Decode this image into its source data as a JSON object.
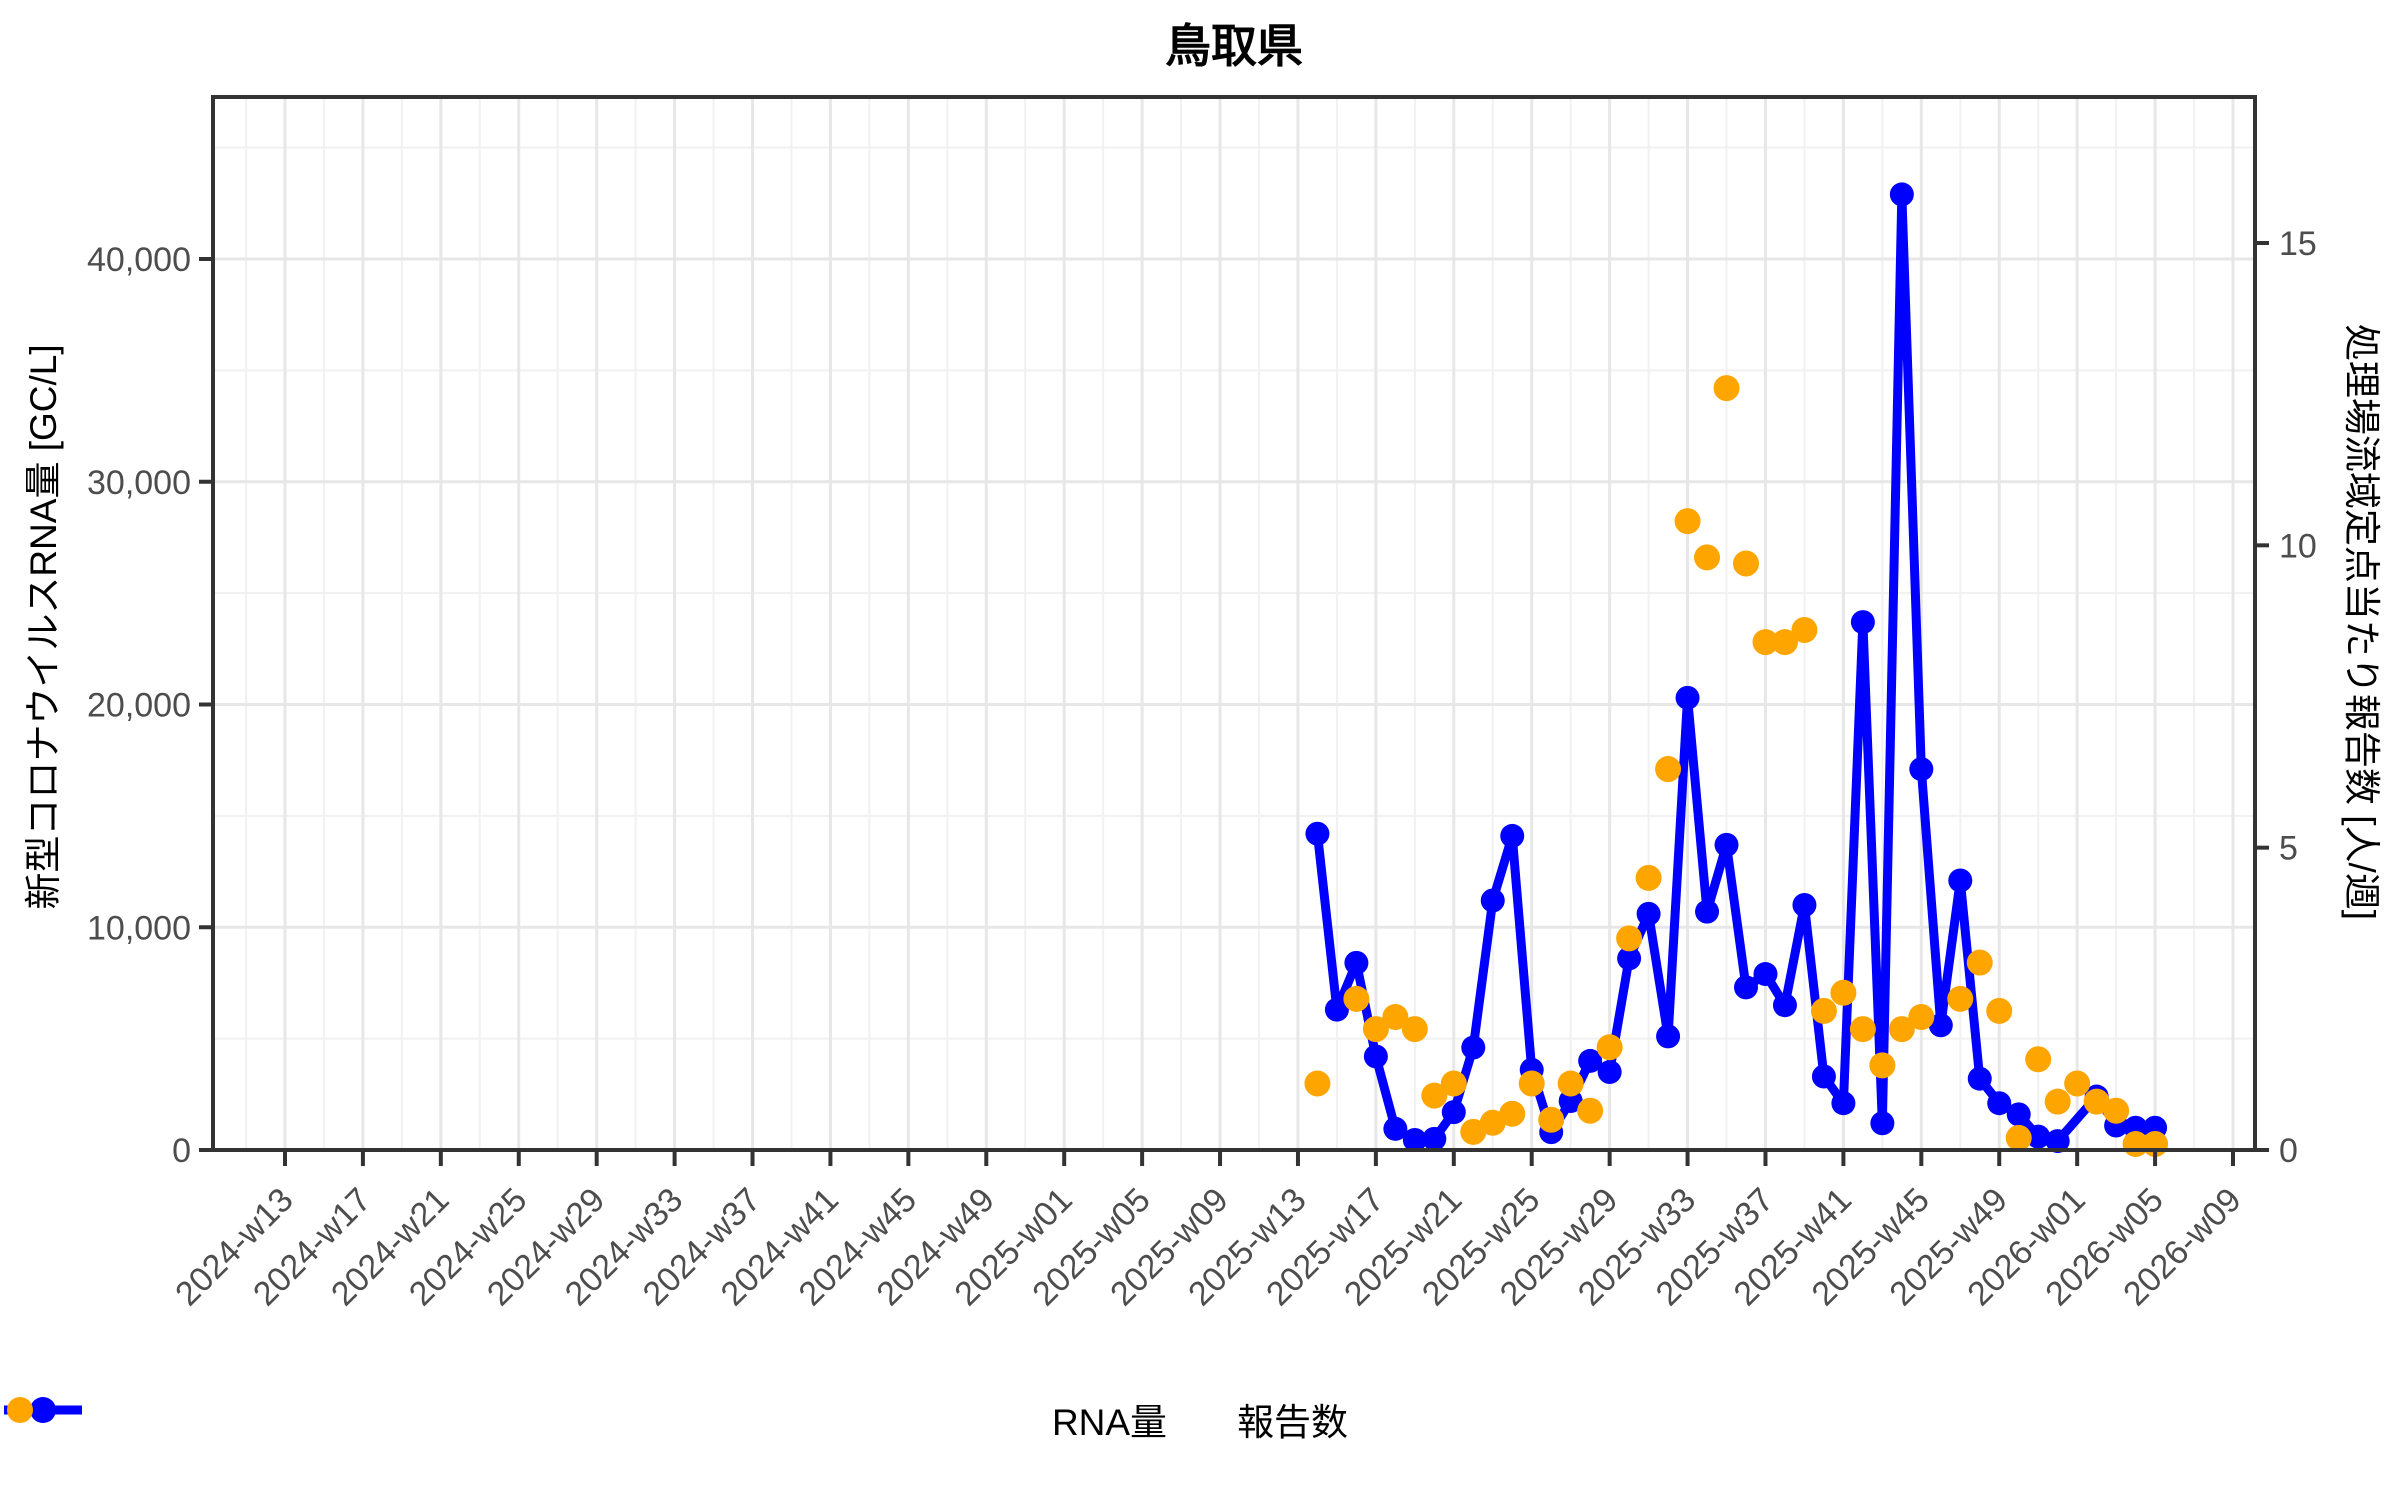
{
  "title": "鳥取県",
  "chart_data": {
    "type": "line",
    "title": "鳥取県",
    "y_left": {
      "label": "新型コロナウイルスRNA量 [GC/L]",
      "tick_labels": [
        "0",
        "10,000",
        "20,000",
        "30,000",
        "40,000"
      ],
      "ticks": [
        0,
        10000,
        20000,
        30000,
        40000
      ],
      "minor_ticks": [
        5000,
        15000,
        25000,
        35000,
        45000
      ],
      "range_top": 47200
    },
    "y_right": {
      "label": "処理場流域定点当たり報告数 [人/週]",
      "tick_labels": [
        "0",
        "5",
        "10",
        "15"
      ],
      "ticks": [
        0,
        5,
        10,
        15
      ]
    },
    "x_ticks": [
      "2024-w13",
      "2024-w17",
      "2024-w21",
      "2024-w25",
      "2024-w29",
      "2024-w33",
      "2024-w37",
      "2024-w41",
      "2024-w45",
      "2024-w49",
      "2025-w01",
      "2025-w05",
      "2025-w09",
      "2025-w13",
      "2025-w17",
      "2025-w21",
      "2025-w25",
      "2025-w29",
      "2025-w33",
      "2025-w37",
      "2025-w41",
      "2025-w45",
      "2025-w49",
      "2026-w01",
      "2026-w05",
      "2026-w09"
    ],
    "weeks_per_tick": 4,
    "grid": "major+minor",
    "legend_position": "bottom",
    "series_start_week": "2025-w14",
    "series_start_offset_weeks": 53,
    "series": [
      {
        "name": "RNA量",
        "axis": "left",
        "style": "line+marker",
        "color": "#0000ff",
        "weeks": [
          "2025-w14",
          "2025-w15",
          "2025-w16",
          "2025-w17",
          "2025-w18",
          "2025-w19",
          "2025-w20",
          "2025-w21",
          "2025-w22",
          "2025-w23",
          "2025-w24",
          "2025-w25",
          "2025-w26",
          "2025-w27",
          "2025-w28",
          "2025-w29",
          "2025-w30",
          "2025-w31",
          "2025-w32",
          "2025-w33",
          "2025-w34",
          "2025-w35",
          "2025-w36",
          "2025-w37",
          "2025-w38",
          "2025-w39",
          "2025-w40",
          "2025-w41",
          "2025-w42",
          "2025-w43",
          "2025-w44",
          "2025-w45",
          "2025-w46",
          "2025-w47",
          "2025-w48",
          "2025-w49",
          "2025-w50",
          "2025-w51",
          "2025-w52",
          "2026-w01",
          "2026-w02",
          "2026-w03",
          "2026-w04",
          "2026-w05"
        ],
        "values": [
          14200,
          6300,
          8400,
          4200,
          950,
          450,
          500,
          1700,
          4600,
          11200,
          14100,
          3600,
          800,
          2200,
          4000,
          3500,
          8600,
          10600,
          5100,
          20300,
          10700,
          13700,
          7300,
          7900,
          6500,
          11000,
          3300,
          2100,
          23700,
          1200,
          42900,
          17100,
          5600,
          12100,
          3200,
          2100,
          1600,
          600,
          400,
          null,
          2400,
          1100,
          1000,
          1000
        ]
      },
      {
        "name": "報告数",
        "axis": "right",
        "style": "scatter",
        "color": "#ffa500",
        "weeks": [
          "2025-w14",
          "2025-w15",
          "2025-w16",
          "2025-w17",
          "2025-w18",
          "2025-w19",
          "2025-w20",
          "2025-w21",
          "2025-w22",
          "2025-w23",
          "2025-w24",
          "2025-w25",
          "2025-w26",
          "2025-w27",
          "2025-w28",
          "2025-w29",
          "2025-w30",
          "2025-w31",
          "2025-w32",
          "2025-w33",
          "2025-w34",
          "2025-w35",
          "2025-w36",
          "2025-w37",
          "2025-w38",
          "2025-w39",
          "2025-w40",
          "2025-w41",
          "2025-w42",
          "2025-w43",
          "2025-w44",
          "2025-w45",
          "2025-w46",
          "2025-w47",
          "2025-w48",
          "2025-w49",
          "2025-w50",
          "2025-w51",
          "2025-w52",
          "2026-w01",
          "2026-w02",
          "2026-w03",
          "2026-w04",
          "2026-w05"
        ],
        "values": [
          1.1,
          null,
          2.5,
          2.0,
          2.2,
          2.0,
          0.9,
          1.1,
          0.3,
          0.45,
          0.6,
          1.1,
          0.5,
          1.1,
          0.65,
          1.7,
          3.5,
          4.5,
          6.3,
          10.4,
          9.8,
          12.6,
          9.7,
          8.4,
          8.4,
          8.6,
          2.3,
          2.6,
          2.0,
          1.4,
          2.0,
          2.2,
          null,
          2.5,
          3.1,
          2.3,
          0.2,
          1.5,
          0.8,
          1.1,
          0.8,
          0.65,
          0.1,
          0.1
        ]
      }
    ],
    "colors": {
      "rna_line": "#0000ff",
      "reports_dot": "#ffa500",
      "grid_major": "#e7e7e7",
      "grid_minor": "#f1f1f1",
      "panel_border": "#333333",
      "tick_text": "#4d4d4d"
    }
  }
}
